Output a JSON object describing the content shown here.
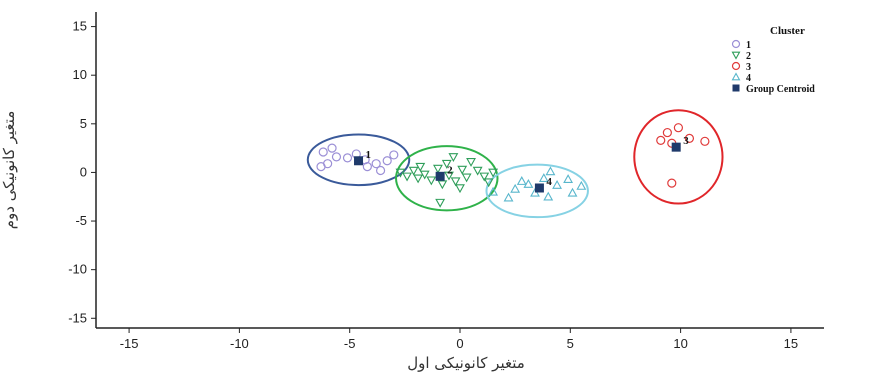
{
  "chart_data": {
    "type": "scatter",
    "title": "",
    "xlabel": "متغیر کانونیکی اول",
    "ylabel": "متغیر کانونیکی دوم",
    "xlim": [
      -16.5,
      16.5
    ],
    "ylim": [
      -16,
      16.5
    ],
    "xticks": [
      -15,
      -10,
      -5,
      0,
      5,
      10,
      15
    ],
    "yticks": [
      15,
      10,
      5,
      0,
      -5,
      -10,
      -15
    ],
    "grid": false,
    "legend": {
      "title": "Cluster",
      "placement": "top-right",
      "entries": [
        {
          "label": "1",
          "marker": "circle",
          "color": "#9b8fd6"
        },
        {
          "label": "2",
          "marker": "triangle-down",
          "color": "#2f9e5a"
        },
        {
          "label": "3",
          "marker": "circle",
          "color": "#e03b3b"
        },
        {
          "label": "4",
          "marker": "triangle-up",
          "color": "#58b6cc"
        },
        {
          "label": "Group Centroid",
          "marker": "square",
          "color": "#1f3a6b"
        }
      ]
    },
    "series": [
      {
        "name": "1",
        "marker": "circle",
        "color": "#9b8fd6",
        "ellipse_color": "#3a5a9a",
        "points": [
          [
            -6.2,
            2.1
          ],
          [
            -5.8,
            2.5
          ],
          [
            -5.6,
            1.6
          ],
          [
            -5.1,
            1.5
          ],
          [
            -4.7,
            1.9
          ],
          [
            -4.3,
            1.3
          ],
          [
            -3.8,
            0.9
          ],
          [
            -3.3,
            1.2
          ],
          [
            -3.0,
            1.8
          ],
          [
            -4.2,
            0.6
          ],
          [
            -3.6,
            0.2
          ],
          [
            -6.3,
            0.6
          ],
          [
            -6.0,
            0.9
          ]
        ],
        "centroid": [
          -4.6,
          1.2
        ],
        "ellipse": {
          "cx": -4.6,
          "cy": 1.3,
          "rx": 2.3,
          "ry": 2.6
        }
      },
      {
        "name": "2",
        "marker": "triangle-down",
        "color": "#2f9e5a",
        "ellipse_color": "#2fb24a",
        "points": [
          [
            -2.7,
            0.0
          ],
          [
            -2.4,
            -0.4
          ],
          [
            -2.1,
            0.2
          ],
          [
            -1.9,
            -0.6
          ],
          [
            -1.6,
            -0.2
          ],
          [
            -1.3,
            -0.8
          ],
          [
            -1.0,
            0.4
          ],
          [
            -0.8,
            -1.2
          ],
          [
            -0.6,
            0.9
          ],
          [
            -0.5,
            -0.3
          ],
          [
            -0.3,
            1.6
          ],
          [
            -0.2,
            -0.9
          ],
          [
            0.1,
            0.3
          ],
          [
            0.3,
            -0.5
          ],
          [
            0.5,
            1.1
          ],
          [
            0.8,
            0.2
          ],
          [
            1.1,
            -0.4
          ],
          [
            1.3,
            -1.0
          ],
          [
            1.5,
            0.0
          ],
          [
            -0.9,
            -3.1
          ],
          [
            -1.8,
            0.6
          ],
          [
            0.0,
            -1.6
          ]
        ],
        "centroid": [
          -0.9,
          -0.4
        ],
        "ellipse": {
          "cx": -0.6,
          "cy": -0.6,
          "rx": 2.3,
          "ry": 3.3
        }
      },
      {
        "name": "3",
        "marker": "circle",
        "color": "#e03b3b",
        "ellipse_color": "#e0262a",
        "points": [
          [
            9.1,
            3.3
          ],
          [
            9.4,
            4.1
          ],
          [
            9.6,
            3.0
          ],
          [
            9.9,
            4.6
          ],
          [
            10.4,
            3.5
          ],
          [
            11.1,
            3.2
          ],
          [
            9.6,
            -1.1
          ]
        ],
        "centroid": [
          9.8,
          2.6
        ],
        "ellipse": {
          "cx": 9.9,
          "cy": 1.6,
          "rx": 2.0,
          "ry": 4.8
        }
      },
      {
        "name": "4",
        "marker": "triangle-up",
        "color": "#58b6cc",
        "ellipse_color": "#86d2e4",
        "points": [
          [
            1.5,
            -2.0
          ],
          [
            2.2,
            -2.6
          ],
          [
            2.5,
            -1.7
          ],
          [
            2.8,
            -0.9
          ],
          [
            3.1,
            -1.2
          ],
          [
            3.4,
            -2.1
          ],
          [
            3.8,
            -0.6
          ],
          [
            4.0,
            -2.5
          ],
          [
            4.4,
            -1.3
          ],
          [
            4.9,
            -0.7
          ],
          [
            5.1,
            -2.1
          ],
          [
            5.5,
            -1.4
          ],
          [
            4.1,
            0.1
          ]
        ],
        "centroid": [
          3.6,
          -1.6
        ],
        "ellipse": {
          "cx": 3.5,
          "cy": -1.9,
          "rx": 2.3,
          "ry": 2.7
        }
      }
    ]
  }
}
